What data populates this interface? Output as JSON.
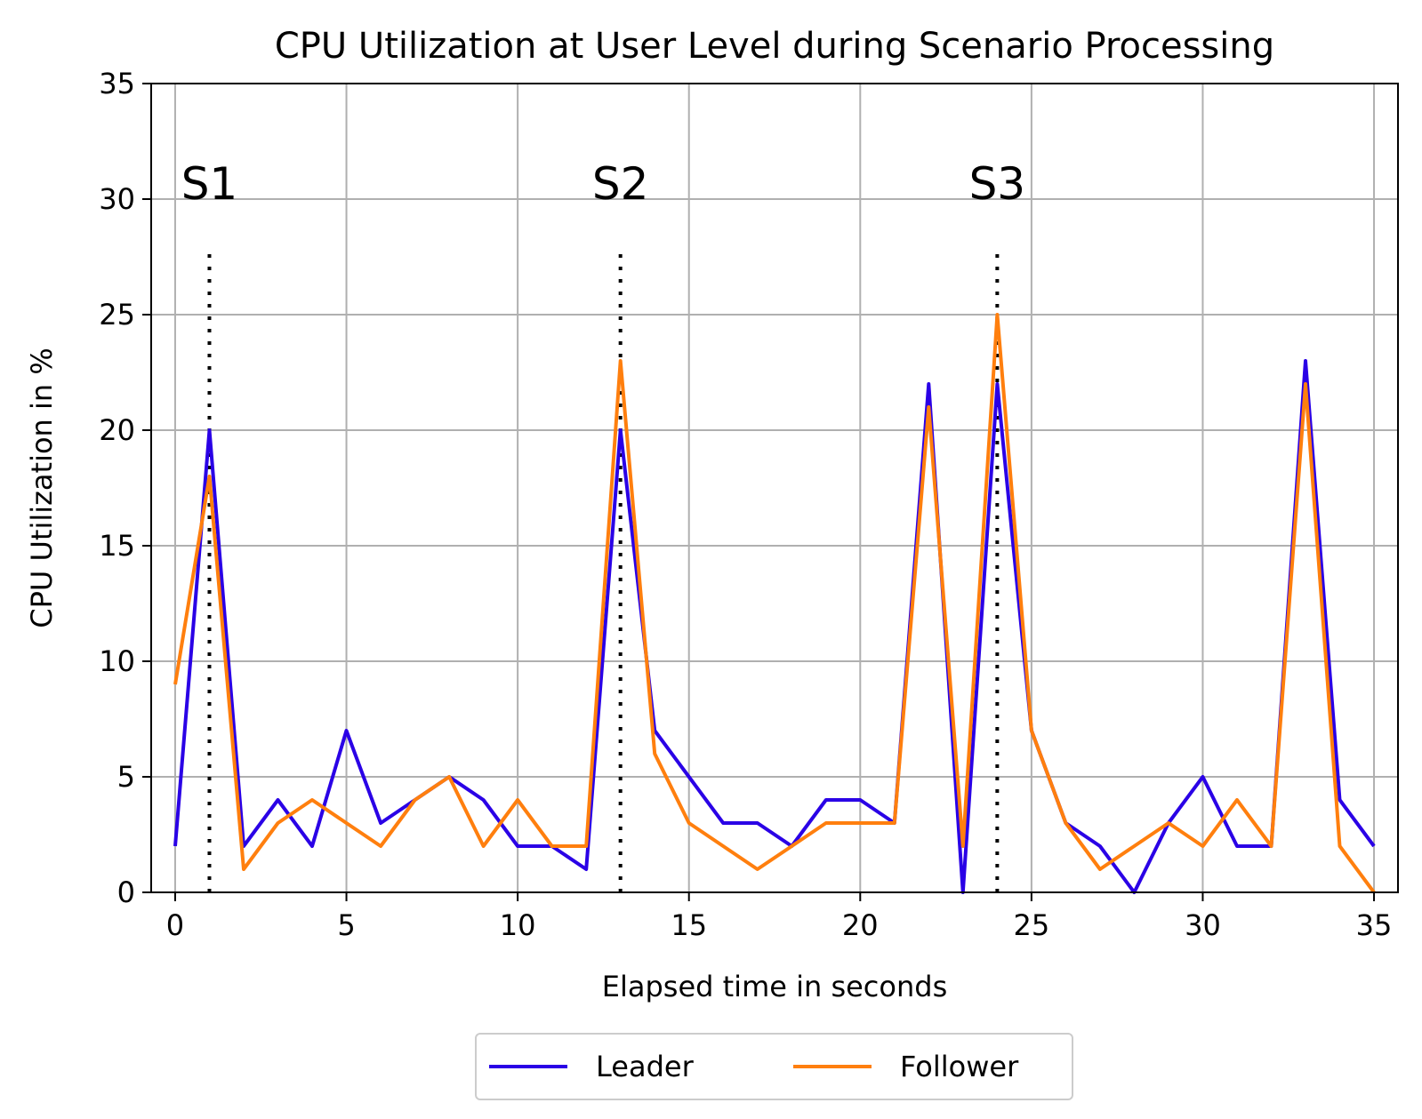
{
  "chart_data": {
    "type": "line",
    "title": "CPU Utilization at User Level during Scenario Processing",
    "xlabel": "Elapsed time in seconds",
    "ylabel": "CPU Utilization in %",
    "xlim": [
      -0.7,
      35.7
    ],
    "ylim": [
      0,
      35
    ],
    "x_ticks": [
      0,
      5,
      10,
      15,
      20,
      25,
      30,
      35
    ],
    "y_ticks": [
      0,
      5,
      10,
      15,
      20,
      25,
      30,
      35
    ],
    "grid": true,
    "legend_position": "bottom-center, below plot",
    "x": [
      0,
      1,
      2,
      3,
      4,
      5,
      6,
      7,
      8,
      9,
      10,
      11,
      12,
      13,
      14,
      15,
      16,
      17,
      18,
      19,
      20,
      21,
      22,
      23,
      24,
      25,
      26,
      27,
      28,
      29,
      30,
      31,
      32,
      33,
      34,
      35
    ],
    "series": [
      {
        "name": "Leader",
        "color": "#2a00e6",
        "values": [
          2,
          20,
          2,
          4,
          2,
          7,
          3,
          4,
          5,
          4,
          2,
          2,
          1,
          20,
          7,
          5,
          3,
          3,
          2,
          4,
          4,
          3,
          22,
          0,
          22,
          7,
          3,
          2,
          0,
          3,
          5,
          2,
          2,
          23,
          4,
          2
        ]
      },
      {
        "name": "Follower",
        "color": "#ff7f0e",
        "values": [
          9,
          18,
          1,
          3,
          4,
          3,
          2,
          4,
          5,
          2,
          4,
          2,
          2,
          23,
          6,
          3,
          2,
          1,
          2,
          3,
          3,
          3,
          21,
          2,
          25,
          7,
          3,
          1,
          2,
          3,
          2,
          4,
          2,
          22,
          2,
          0
        ]
      }
    ],
    "annotations": [
      {
        "label": "S1",
        "x": 1,
        "line_from": 0,
        "line_to": 28,
        "text_y": 30
      },
      {
        "label": "S2",
        "x": 13,
        "line_from": 0,
        "line_to": 28,
        "text_y": 30
      },
      {
        "label": "S3",
        "x": 24,
        "line_from": 0,
        "line_to": 28,
        "text_y": 30
      }
    ]
  }
}
